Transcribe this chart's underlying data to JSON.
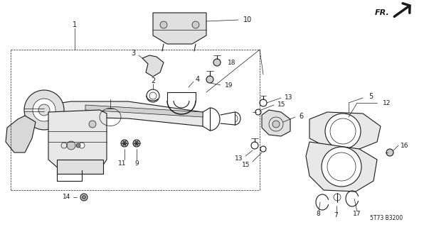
{
  "bg_color": "#ffffff",
  "line_color": "#1a1a1a",
  "fig_width": 6.03,
  "fig_height": 3.2,
  "dpi": 100,
  "diagram_code_text": "5T73 B3200",
  "font_size_labels": 6.5,
  "font_size_code": 5.5
}
